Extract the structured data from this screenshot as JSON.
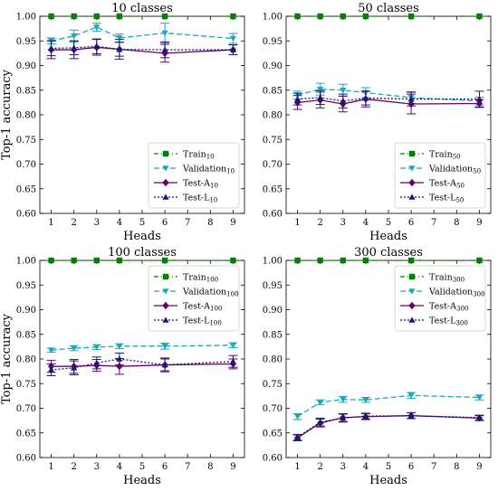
{
  "colors": {
    "train": "#008000",
    "validation": "#1aa7b8",
    "testA": "#660066",
    "testL": "#191970"
  },
  "chart_data": [
    {
      "type": "line",
      "title": "10 classes",
      "xlabel": "Heads",
      "ylabel": "Top-1 accuracy",
      "ylim": [
        0.6,
        1.0
      ],
      "yticks": [
        "0.60",
        "0.65",
        "0.70",
        "0.75",
        "0.80",
        "0.85",
        "0.90",
        "0.95",
        "1.00"
      ],
      "xticks": [
        1,
        2,
        3,
        4,
        5,
        6,
        7,
        8,
        9
      ],
      "x": [
        1,
        2,
        3,
        4,
        6,
        9
      ],
      "legend_position": "bottom-right",
      "series": [
        {
          "name": "Train",
          "sub": "10",
          "key": "train",
          "dash": "5,3,1,3",
          "marker": "square",
          "values": [
            1.0,
            1.0,
            1.0,
            1.0,
            1.0,
            1.0
          ],
          "err": [
            0,
            0,
            0,
            0,
            0,
            0
          ]
        },
        {
          "name": "Validation",
          "sub": "10",
          "key": "validation",
          "dash": "6,3",
          "marker": "triangle-down",
          "values": [
            0.95,
            0.96,
            0.978,
            0.956,
            0.966,
            0.955
          ],
          "err": [
            0.006,
            0.012,
            0.008,
            0.008,
            0.02,
            0.01
          ]
        },
        {
          "name": "Test-A",
          "sub": "10",
          "key": "testA",
          "dash": "",
          "marker": "diamond",
          "values": [
            0.932,
            0.932,
            0.937,
            0.933,
            0.925,
            0.932
          ],
          "err": [
            0.018,
            0.018,
            0.016,
            0.02,
            0.018,
            0.01
          ]
        },
        {
          "name": "Test-L",
          "sub": "10",
          "key": "testL",
          "dash": "2,2",
          "marker": "triangle-up",
          "values": [
            0.935,
            0.936,
            0.939,
            0.933,
            0.932,
            0.932
          ],
          "err": [
            0.015,
            0.014,
            0.015,
            0.014,
            0.016,
            0.01
          ]
        }
      ]
    },
    {
      "type": "line",
      "title": "50 classes",
      "xlabel": "Heads",
      "ylabel": "",
      "ylim": [
        0.6,
        1.0
      ],
      "yticks": [
        "0.60",
        "0.65",
        "0.70",
        "0.75",
        "0.80",
        "0.85",
        "0.90",
        "0.95",
        "1.00"
      ],
      "xticks": [
        1,
        2,
        3,
        4,
        5,
        6,
        7,
        8,
        9
      ],
      "x": [
        1,
        2,
        3,
        4,
        6,
        9
      ],
      "legend_position": "bottom-right",
      "series": [
        {
          "name": "Train",
          "sub": "50",
          "key": "train",
          "dash": "5,3,1,3",
          "marker": "square",
          "values": [
            1.0,
            1.0,
            1.0,
            1.0,
            1.0,
            1.0
          ],
          "err": [
            0,
            0,
            0,
            0,
            0,
            0
          ]
        },
        {
          "name": "Validation",
          "sub": "50",
          "key": "validation",
          "dash": "6,3",
          "marker": "triangle-down",
          "values": [
            0.84,
            0.852,
            0.85,
            0.845,
            0.835,
            0.828
          ],
          "err": [
            0.008,
            0.012,
            0.012,
            0.01,
            0.012,
            0.008
          ]
        },
        {
          "name": "Test-A",
          "sub": "50",
          "key": "testA",
          "dash": "",
          "marker": "diamond",
          "values": [
            0.825,
            0.83,
            0.822,
            0.832,
            0.822,
            0.823
          ],
          "err": [
            0.014,
            0.016,
            0.016,
            0.016,
            0.02,
            0.008
          ]
        },
        {
          "name": "Test-L",
          "sub": "50",
          "key": "testL",
          "dash": "2,2",
          "marker": "triangle-up",
          "values": [
            0.832,
            0.835,
            0.828,
            0.834,
            0.832,
            0.832
          ],
          "err": [
            0.012,
            0.014,
            0.014,
            0.014,
            0.014,
            0.016
          ]
        }
      ]
    },
    {
      "type": "line",
      "title": "100 classes",
      "xlabel": "Heads",
      "ylabel": "Top-1 accuracy",
      "ylim": [
        0.6,
        1.0
      ],
      "yticks": [
        "0.60",
        "0.65",
        "0.70",
        "0.75",
        "0.80",
        "0.85",
        "0.90",
        "0.95",
        "1.00"
      ],
      "xticks": [
        1,
        2,
        3,
        4,
        5,
        6,
        7,
        8,
        9
      ],
      "x": [
        1,
        2,
        3,
        4,
        6,
        9
      ],
      "legend_position": "top-right",
      "series": [
        {
          "name": "Train",
          "sub": "100",
          "key": "train",
          "dash": "5,3,1,3",
          "marker": "square",
          "values": [
            1.0,
            1.0,
            1.0,
            1.0,
            1.0,
            1.0
          ],
          "err": [
            0,
            0,
            0,
            0,
            0,
            0
          ]
        },
        {
          "name": "Validation",
          "sub": "100",
          "key": "validation",
          "dash": "6,3",
          "marker": "triangle-down",
          "values": [
            0.818,
            0.822,
            0.824,
            0.826,
            0.826,
            0.828
          ],
          "err": [
            0.004,
            0.005,
            0.005,
            0.005,
            0.006,
            0.005
          ]
        },
        {
          "name": "Test-A",
          "sub": "100",
          "key": "testA",
          "dash": "",
          "marker": "diamond",
          "values": [
            0.785,
            0.785,
            0.787,
            0.785,
            0.788,
            0.79
          ],
          "err": [
            0.012,
            0.014,
            0.012,
            0.016,
            0.012,
            0.01
          ]
        },
        {
          "name": "Test-L",
          "sub": "100",
          "key": "testL",
          "dash": "2,2",
          "marker": "triangle-up",
          "values": [
            0.778,
            0.782,
            0.792,
            0.8,
            0.788,
            0.795
          ],
          "err": [
            0.012,
            0.014,
            0.012,
            0.012,
            0.014,
            0.012
          ]
        }
      ]
    },
    {
      "type": "line",
      "title": "300 classes",
      "xlabel": "Heads",
      "ylabel": "",
      "ylim": [
        0.6,
        1.0
      ],
      "yticks": [
        "0.60",
        "0.65",
        "0.70",
        "0.75",
        "0.80",
        "0.85",
        "0.90",
        "0.95",
        "1.00"
      ],
      "xticks": [
        1,
        2,
        3,
        4,
        5,
        6,
        7,
        8,
        9
      ],
      "x": [
        1,
        2,
        3,
        4,
        6,
        9
      ],
      "legend_position": "top-right",
      "series": [
        {
          "name": "Train",
          "sub": "300",
          "key": "train",
          "dash": "5,3,1,3",
          "marker": "square",
          "values": [
            1.0,
            1.0,
            1.0,
            1.0,
            1.0,
            1.0
          ],
          "err": [
            0,
            0,
            0,
            0,
            0,
            0
          ]
        },
        {
          "name": "Validation",
          "sub": "300",
          "key": "validation",
          "dash": "6,3",
          "marker": "triangle-down",
          "values": [
            0.683,
            0.712,
            0.718,
            0.717,
            0.726,
            0.722
          ],
          "err": [
            0.006,
            0.005,
            0.006,
            0.005,
            0.006,
            0.005
          ]
        },
        {
          "name": "Test-A",
          "sub": "300",
          "key": "testA",
          "dash": "",
          "marker": "diamond",
          "values": [
            0.64,
            0.67,
            0.681,
            0.683,
            0.685,
            0.68
          ],
          "err": [
            0.006,
            0.008,
            0.008,
            0.006,
            0.006,
            0.005
          ]
        },
        {
          "name": "Test-L",
          "sub": "300",
          "key": "testL",
          "dash": "2,2",
          "marker": "triangle-up",
          "values": [
            0.641,
            0.672,
            0.68,
            0.684,
            0.685,
            0.681
          ],
          "err": [
            0.006,
            0.008,
            0.008,
            0.006,
            0.006,
            0.005
          ]
        }
      ]
    }
  ]
}
